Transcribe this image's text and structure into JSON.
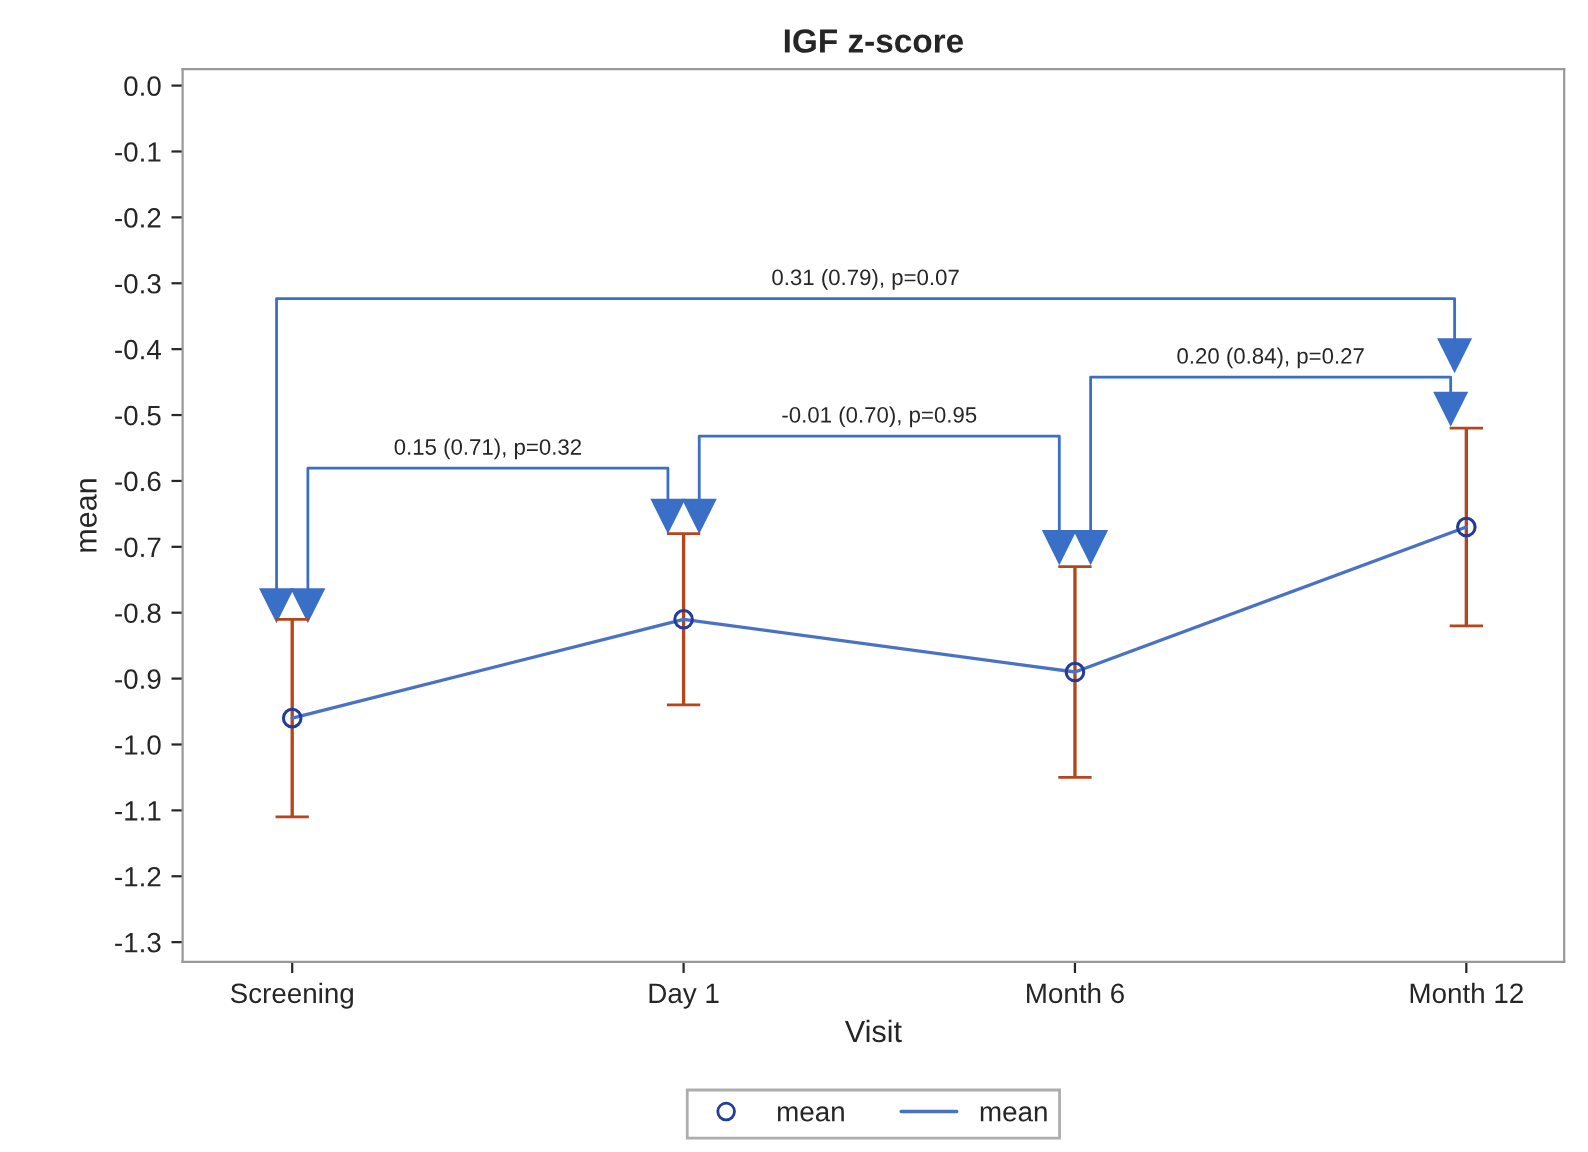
{
  "chart_data": {
    "type": "line",
    "title": "IGF z-score",
    "xlabel": "Visit",
    "ylabel": "mean",
    "categories": [
      "Screening",
      "Day 1",
      "Month 6",
      "Month 12"
    ],
    "series": [
      {
        "type": "scatter",
        "name": "mean",
        "color": "#1f3d99",
        "marker": "circle",
        "values": [
          -0.96,
          -0.81,
          -0.89,
          -0.67
        ],
        "errors": [
          [
            -1.11,
            -0.81
          ],
          [
            -0.94,
            -0.68
          ],
          [
            -1.05,
            -0.73
          ],
          [
            -0.82,
            -0.52
          ]
        ]
      },
      {
        "name": "mean",
        "color": "#4a72c4",
        "values": [
          -0.96,
          -0.81,
          -0.89,
          -0.67
        ],
        "line_style": "solid"
      }
    ],
    "ylim": [
      -1.33,
      0.025
    ],
    "yticks": [
      {
        "value": 0.0,
        "label": "0.0"
      },
      {
        "value": -0.1,
        "label": "-0.1"
      },
      {
        "value": -0.2,
        "label": "-0.2"
      },
      {
        "value": -0.3,
        "label": "-0.3"
      },
      {
        "value": -0.4,
        "label": "-0.4"
      },
      {
        "value": -0.5,
        "label": "-0.5"
      },
      {
        "value": -0.6,
        "label": "-0.6"
      },
      {
        "value": -0.7,
        "label": "-0.7"
      },
      {
        "value": -0.8,
        "label": "-0.8"
      },
      {
        "value": -0.9,
        "label": "-0.9"
      },
      {
        "value": -1.0,
        "label": "-1.0"
      },
      {
        "value": -1.1,
        "label": "-1.1"
      },
      {
        "value": -1.2,
        "label": "-1.2"
      },
      {
        "value": -1.3,
        "label": "-1.3"
      }
    ],
    "grid": false,
    "legend": "bottom",
    "annotations": [
      "0.15 (0.71), p=0.32",
      "-0.01 (0.70), p=0.95",
      "0.20 (0.84), p=0.27",
      "0.31 (0.79), p=0.07"
    ]
  }
}
